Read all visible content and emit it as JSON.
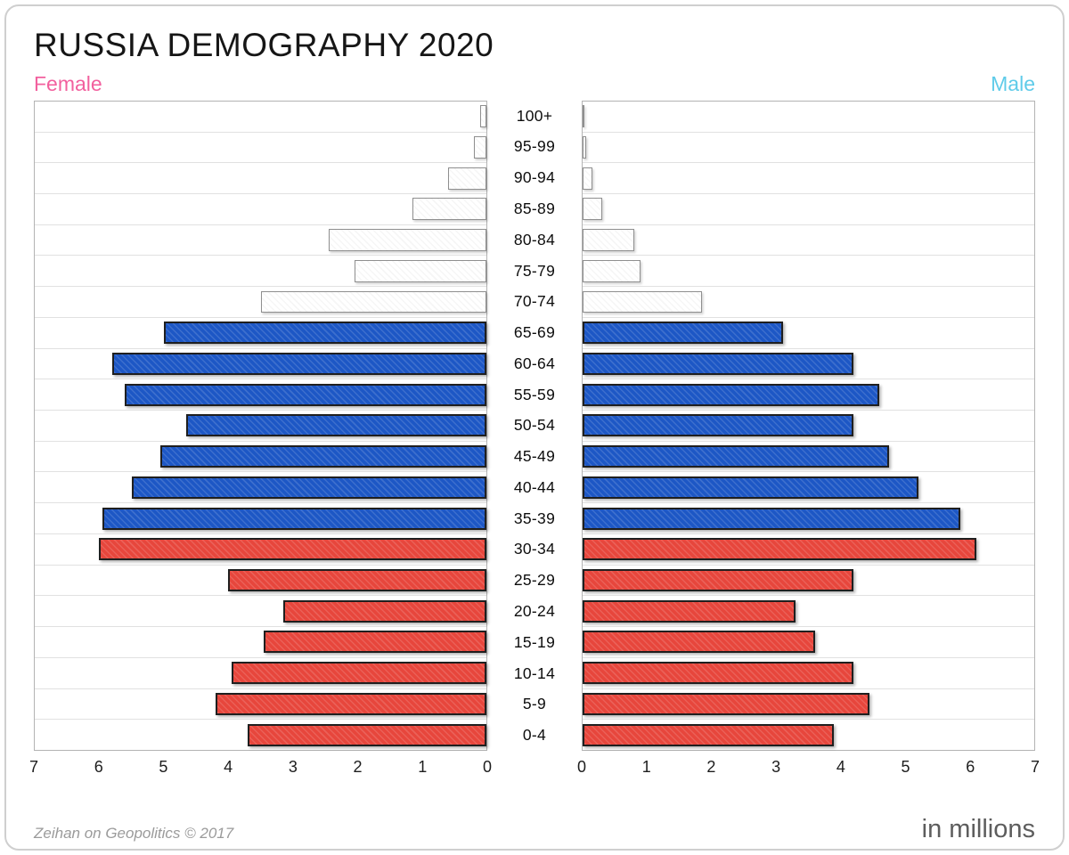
{
  "title": "RUSSIA DEMOGRAPHY 2020",
  "legend": {
    "female": "Female",
    "male": "Male"
  },
  "footer": {
    "credit": "Zeihan on Geopolitics © 2017",
    "units": "in millions"
  },
  "colors": {
    "female_label": "#f2609e",
    "male_label": "#5fcbe9",
    "red": "#e7463c",
    "blue": "#1d57c5",
    "white": "#ffffff"
  },
  "chart_data": {
    "type": "bar",
    "subtype": "population-pyramid",
    "title": "RUSSIA DEMOGRAPHY 2020",
    "units": "millions",
    "xmax": 7,
    "xlabel": "in millions",
    "grid": "horizontal",
    "categories": [
      "100+",
      "95-99",
      "90-94",
      "85-89",
      "80-84",
      "75-79",
      "70-74",
      "65-69",
      "60-64",
      "55-59",
      "50-54",
      "45-49",
      "40-44",
      "35-39",
      "30-34",
      "25-29",
      "20-24",
      "15-19",
      "10-14",
      "5-9",
      "0-4"
    ],
    "series": [
      {
        "name": "Female",
        "side": "left",
        "values": [
          0.1,
          0.2,
          0.6,
          1.15,
          2.45,
          2.05,
          3.5,
          5.0,
          5.8,
          5.6,
          4.65,
          5.05,
          5.5,
          5.95,
          6.0,
          4.0,
          3.15,
          3.45,
          3.95,
          4.2,
          3.7
        ]
      },
      {
        "name": "Male",
        "side": "right",
        "values": [
          0.02,
          0.06,
          0.15,
          0.3,
          0.8,
          0.9,
          1.85,
          3.1,
          4.2,
          4.6,
          4.2,
          4.75,
          5.2,
          5.85,
          6.1,
          4.2,
          3.3,
          3.6,
          4.2,
          4.45,
          3.9
        ]
      }
    ],
    "bar_colors": [
      "white",
      "white",
      "white",
      "white",
      "white",
      "white",
      "white",
      "blue",
      "blue",
      "blue",
      "blue",
      "blue",
      "blue",
      "blue",
      "red",
      "red",
      "red",
      "red",
      "red",
      "red",
      "red"
    ],
    "axis": {
      "left_ticks": [
        7,
        6,
        5,
        4,
        3,
        2,
        1,
        0
      ],
      "right_ticks": [
        0,
        1,
        2,
        3,
        4,
        5,
        6,
        7
      ]
    }
  }
}
